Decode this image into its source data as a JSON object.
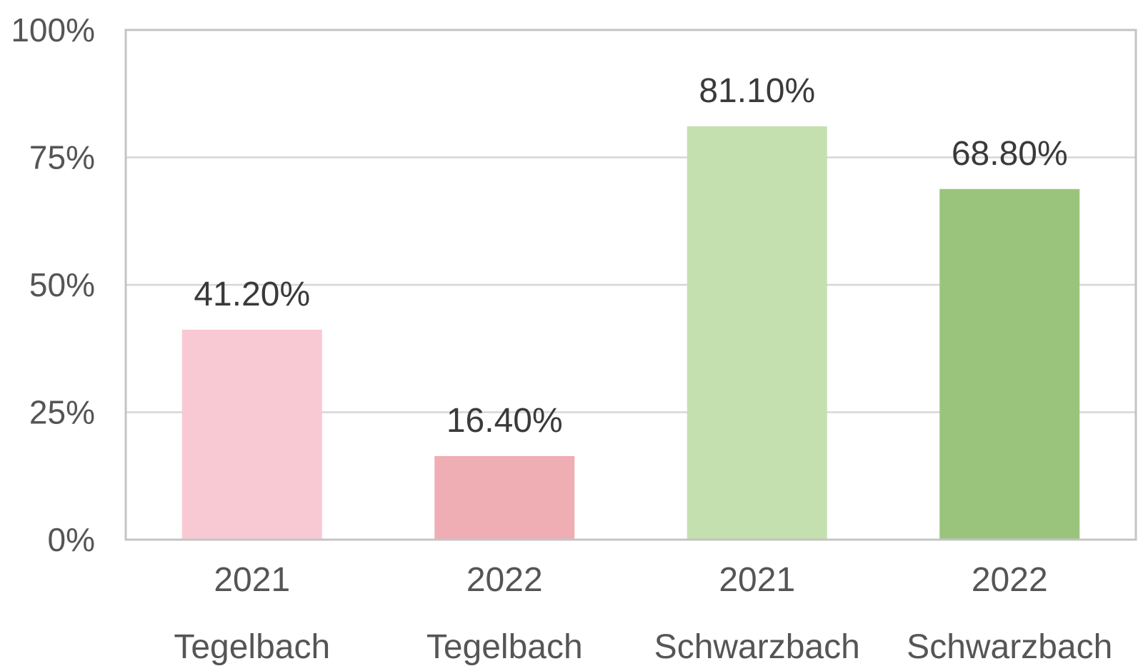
{
  "chart_data": {
    "type": "bar",
    "title": "",
    "xlabel": "",
    "ylabel": "",
    "ylim": [
      0,
      100
    ],
    "y_ticks": [
      {
        "value": 0,
        "label": "0%"
      },
      {
        "value": 25,
        "label": "25%"
      },
      {
        "value": 50,
        "label": "50%"
      },
      {
        "value": 75,
        "label": "75%"
      },
      {
        "value": 100,
        "label": "100%"
      }
    ],
    "grid": true,
    "legend": "none",
    "bars": [
      {
        "year": "2021",
        "site": "Tegelbach",
        "value": 41.2,
        "label": "41.20%",
        "color": "#f9c9d3"
      },
      {
        "year": "2022",
        "site": "Tegelbach",
        "value": 16.4,
        "label": "16.40%",
        "color": "#efadb4"
      },
      {
        "year": "2021",
        "site": "Schwarzbach",
        "value": 81.1,
        "label": "81.10%",
        "color": "#c4e0ae"
      },
      {
        "year": "2022",
        "site": "Schwarzbach",
        "value": 68.8,
        "label": "68.80%",
        "color": "#9ac47c"
      }
    ]
  }
}
